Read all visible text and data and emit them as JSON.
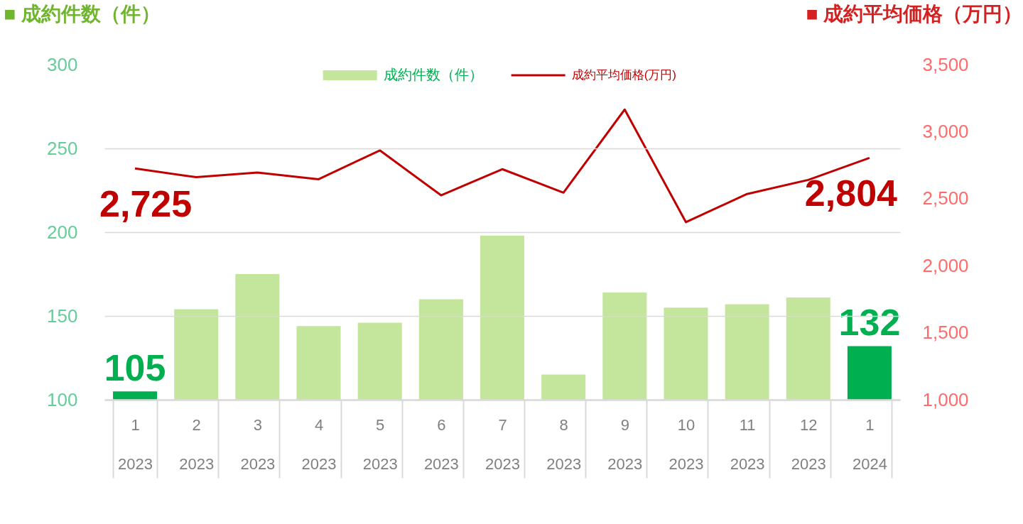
{
  "chart_data": {
    "type": "bar",
    "ylabel": "■ 成約件数（件）",
    "y2label": "■ 成約平均価格（万円）",
    "categories": [
      "1\n2023",
      "2\n2023",
      "3\n2023",
      "4\n2023",
      "5\n2023",
      "6\n2023",
      "7\n2023",
      "8\n2023",
      "9\n2023",
      "10\n2023",
      "11\n2023",
      "12\n2023",
      "1\n2024"
    ],
    "series": [
      {
        "name": "成約件数（件）",
        "color": "#c3e59c",
        "colors": [
          "#00b050",
          "#c3e59c",
          "#c3e59c",
          "#c3e59c",
          "#c3e59c",
          "#c3e59c",
          "#c3e59c",
          "#c3e59c",
          "#c3e59c",
          "#c3e59c",
          "#c3e59c",
          "#c3e59c",
          "#00b050"
        ],
        "values": [
          105,
          154,
          175,
          144,
          146,
          160,
          198,
          115,
          164,
          155,
          157,
          161,
          132
        ],
        "value_labels": [
          "105",
          null,
          null,
          null,
          null,
          null,
          null,
          null,
          null,
          null,
          null,
          null,
          "132"
        ]
      },
      {
        "name": "成約平均価格(万円)",
        "type": "line",
        "axis": "y2",
        "color": "#c00000",
        "values": [
          2725,
          2660,
          2695,
          2645,
          2860,
          2525,
          2720,
          2545,
          3165,
          2325,
          2535,
          2640,
          2804
        ],
        "value_labels": [
          "2,725",
          null,
          null,
          null,
          null,
          null,
          null,
          null,
          null,
          null,
          null,
          null,
          "2,804"
        ]
      }
    ],
    "ylim": [
      100,
      300
    ],
    "yticks": [
      100,
      150,
      200,
      250,
      300
    ],
    "y2lim": [
      1000,
      3500
    ],
    "y2ticks": [
      {
        "value": 1000,
        "label": "1,000"
      },
      {
        "value": 1500,
        "label": "1,500"
      },
      {
        "value": 2000,
        "label": "2,000"
      },
      {
        "value": 2500,
        "label": "2,500"
      },
      {
        "value": 3000,
        "label": "3,000"
      },
      {
        "value": 3500,
        "label": "3,500"
      }
    ],
    "grid": "y",
    "legend": "top"
  }
}
